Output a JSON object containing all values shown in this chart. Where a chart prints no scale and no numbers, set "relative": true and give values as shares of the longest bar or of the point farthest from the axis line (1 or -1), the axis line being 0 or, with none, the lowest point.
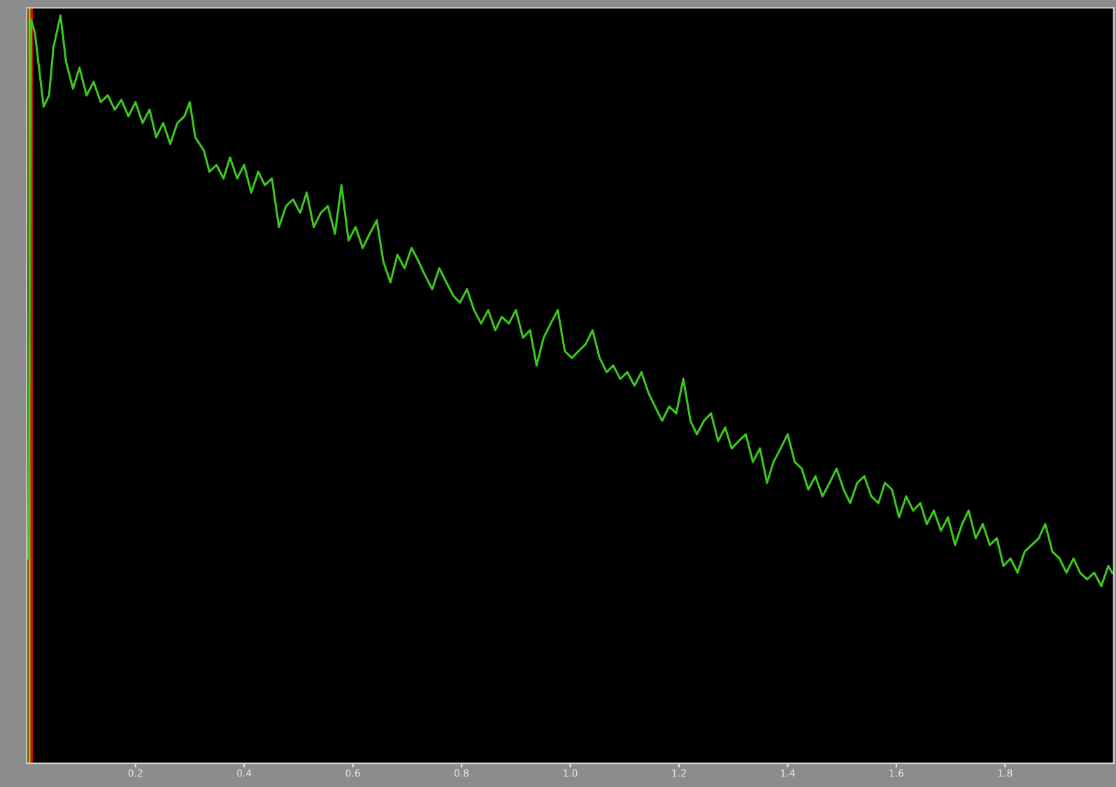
{
  "chart_data": {
    "type": "line",
    "relative": true,
    "xlim": [
      0,
      2.0
    ],
    "xticks": [
      0.2,
      0.4,
      0.6,
      0.8,
      {
        "value": 1.0,
        "label": "1.0"
      },
      1.2,
      1.4,
      1.6,
      1.8
    ],
    "tick_labels": "x",
    "grid": false,
    "legend": false,
    "marker": "none",
    "line_style": "solid",
    "ref_lines": [
      {
        "axis": "x",
        "value": 0.005,
        "label": null,
        "color": "#c8b400"
      },
      {
        "axis": "x",
        "value": 0.009,
        "label": null,
        "color": "#d01010"
      }
    ],
    "series": [
      {
        "color": "#3cc81e",
        "x": [
          0.003,
          0.008,
          0.015,
          0.031,
          0.041,
          0.049,
          0.062,
          0.072,
          0.085,
          0.097,
          0.11,
          0.123,
          0.136,
          0.149,
          0.162,
          0.174,
          0.187,
          0.2,
          0.213,
          0.226,
          0.238,
          0.251,
          0.264,
          0.277,
          0.29,
          0.3,
          0.31,
          0.326,
          0.336,
          0.349,
          0.362,
          0.374,
          0.387,
          0.4,
          0.413,
          0.426,
          0.438,
          0.451,
          0.464,
          0.477,
          0.49,
          0.503,
          0.515,
          0.528,
          0.541,
          0.554,
          0.567,
          0.579,
          0.592,
          0.605,
          0.618,
          0.631,
          0.644,
          0.656,
          0.669,
          0.682,
          0.695,
          0.708,
          0.721,
          0.733,
          0.746,
          0.759,
          0.772,
          0.785,
          0.797,
          0.81,
          0.823,
          0.836,
          0.849,
          0.862,
          0.874,
          0.887,
          0.9,
          0.913,
          0.926,
          0.938,
          0.951,
          0.964,
          0.977,
          0.99,
          1.003,
          1.015,
          1.028,
          1.041,
          1.054,
          1.067,
          1.079,
          1.092,
          1.105,
          1.118,
          1.131,
          1.144,
          1.156,
          1.169,
          1.182,
          1.195,
          1.208,
          1.221,
          1.233,
          1.246,
          1.259,
          1.272,
          1.285,
          1.297,
          1.31,
          1.323,
          1.336,
          1.349,
          1.362,
          1.374,
          1.387,
          1.4,
          1.413,
          1.426,
          1.438,
          1.451,
          1.464,
          1.477,
          1.49,
          1.503,
          1.515,
          1.528,
          1.541,
          1.554,
          1.567,
          1.579,
          1.592,
          1.605,
          1.618,
          1.631,
          1.644,
          1.656,
          1.669,
          1.682,
          1.695,
          1.708,
          1.721,
          1.733,
          1.746,
          1.759,
          1.772,
          1.785,
          1.797,
          1.81,
          1.823,
          1.836,
          1.849,
          1.862,
          1.874,
          1.887,
          1.9,
          1.913,
          1.926,
          1.938,
          1.951,
          1.964,
          1.977,
          1.99,
          1.997
        ],
        "values": [
          0.274,
          0.994,
          0.976,
          0.878,
          0.893,
          0.957,
          1.0,
          0.939,
          0.902,
          0.93,
          0.893,
          0.911,
          0.884,
          0.893,
          0.874,
          0.887,
          0.865,
          0.884,
          0.856,
          0.874,
          0.837,
          0.856,
          0.828,
          0.856,
          0.865,
          0.884,
          0.837,
          0.819,
          0.791,
          0.8,
          0.782,
          0.81,
          0.782,
          0.8,
          0.763,
          0.791,
          0.773,
          0.782,
          0.717,
          0.745,
          0.754,
          0.736,
          0.763,
          0.717,
          0.736,
          0.745,
          0.708,
          0.773,
          0.699,
          0.717,
          0.689,
          0.708,
          0.726,
          0.671,
          0.643,
          0.68,
          0.662,
          0.689,
          0.671,
          0.652,
          0.634,
          0.662,
          0.643,
          0.625,
          0.616,
          0.634,
          0.606,
          0.588,
          0.606,
          0.579,
          0.597,
          0.588,
          0.606,
          0.569,
          0.579,
          0.532,
          0.569,
          0.588,
          0.606,
          0.551,
          0.542,
          0.551,
          0.56,
          0.579,
          0.542,
          0.523,
          0.532,
          0.514,
          0.523,
          0.505,
          0.523,
          0.495,
          0.477,
          0.458,
          0.477,
          0.468,
          0.514,
          0.458,
          0.44,
          0.458,
          0.468,
          0.431,
          0.449,
          0.421,
          0.431,
          0.44,
          0.403,
          0.421,
          0.375,
          0.403,
          0.421,
          0.44,
          0.403,
          0.394,
          0.366,
          0.384,
          0.357,
          0.375,
          0.394,
          0.366,
          0.348,
          0.375,
          0.384,
          0.357,
          0.348,
          0.375,
          0.366,
          0.329,
          0.357,
          0.338,
          0.348,
          0.32,
          0.338,
          0.311,
          0.329,
          0.292,
          0.32,
          0.338,
          0.301,
          0.32,
          0.292,
          0.301,
          0.264,
          0.274,
          0.255,
          0.283,
          0.292,
          0.301,
          0.32,
          0.283,
          0.274,
          0.255,
          0.274,
          0.255,
          0.246,
          0.255,
          0.237,
          0.264,
          0.255
        ]
      }
    ]
  }
}
